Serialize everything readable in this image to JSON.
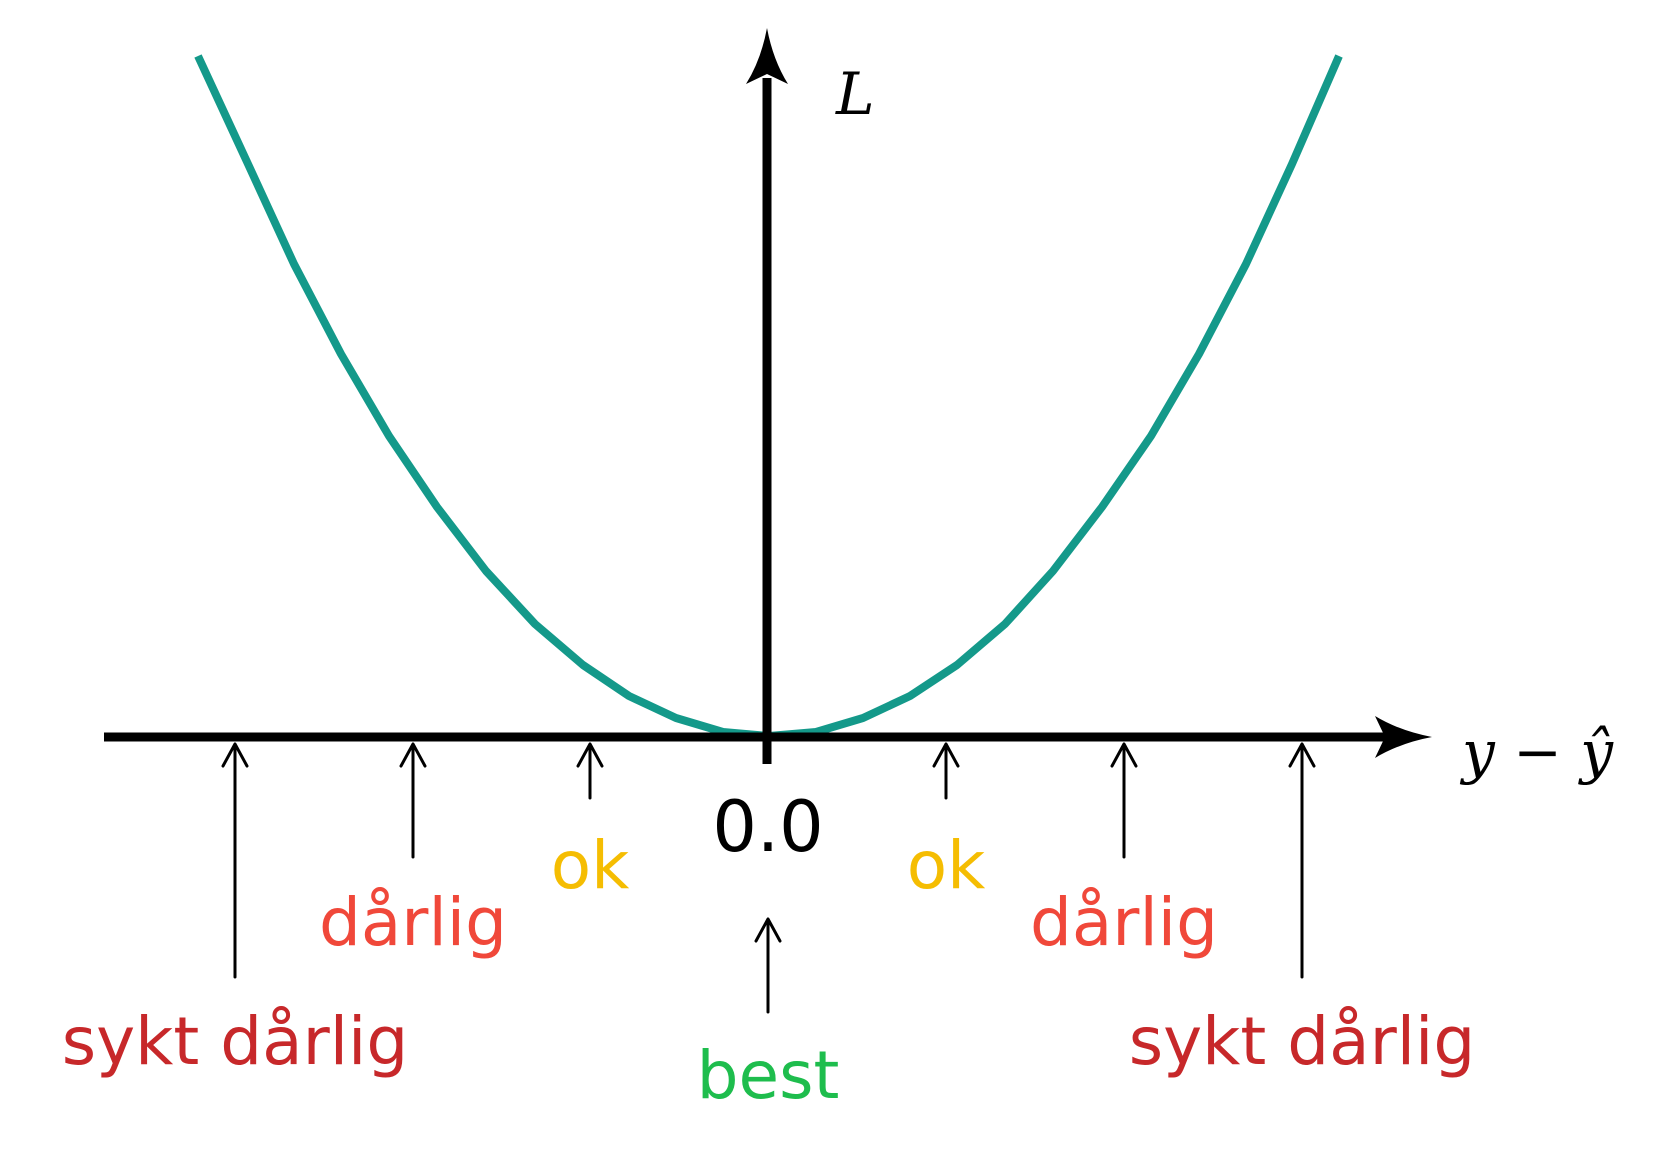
{
  "diagram": {
    "y_axis_label": "L",
    "x_axis_label": "y − ŷ",
    "origin_label": "0.0",
    "curve_color": "#14998a",
    "markers": [
      {
        "id": "sykt-left",
        "label": "sykt dårlig",
        "color": "#c7282a"
      },
      {
        "id": "darlig-left",
        "label": "dårlig",
        "color": "#f0483a"
      },
      {
        "id": "ok-left",
        "label": "ok",
        "color": "#f5bd02"
      },
      {
        "id": "best",
        "label": "best",
        "color": "#1ebd4d"
      },
      {
        "id": "ok-right",
        "label": "ok",
        "color": "#f5bd02"
      },
      {
        "id": "darlig-right",
        "label": "dårlig",
        "color": "#f0483a"
      },
      {
        "id": "sykt-right",
        "label": "sykt dårlig",
        "color": "#c7282a"
      }
    ]
  }
}
